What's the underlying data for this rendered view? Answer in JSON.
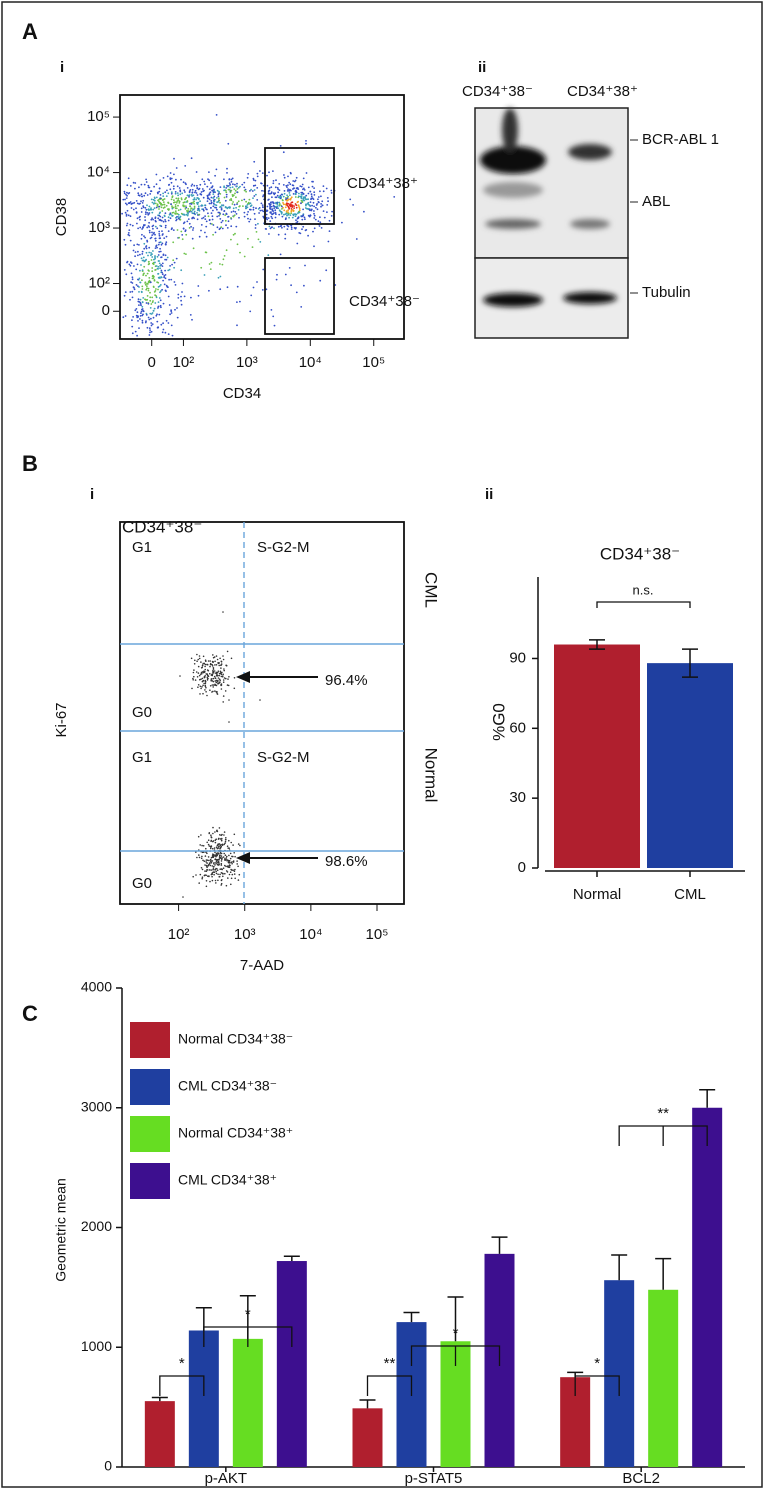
{
  "panel_labels": [
    "A",
    "i",
    "ii",
    "B",
    "i",
    "ii",
    "C"
  ],
  "blot": {
    "lanes": [
      "CD34⁺38⁻",
      "CD34⁺38⁺"
    ],
    "bands": [
      "BCR-ABL 1",
      "ABL",
      "Tubulin"
    ]
  },
  "chart_data": [
    {
      "type": "scatter",
      "xlabel": "CD34",
      "ylabel": "CD38",
      "scale": "biexponential",
      "xlim": [
        -100,
        300000
      ],
      "ylim": [
        -100,
        250000
      ],
      "xticks": [
        0,
        {
          "value": 100,
          "label": "10²"
        },
        {
          "value": 1000,
          "label": "10³"
        },
        {
          "value": 10000,
          "label": "10⁴"
        },
        {
          "value": 100000,
          "label": "10⁵"
        }
      ],
      "yticks": [
        0,
        {
          "value": 100,
          "label": "10²"
        },
        {
          "value": 1000,
          "label": "10³"
        },
        {
          "value": 10000,
          "label": "10⁴"
        },
        {
          "value": 100000,
          "label": "10⁵"
        }
      ],
      "gates": [
        "CD34⁺38⁺",
        "CD34⁺38⁻"
      ]
    },
    {
      "type": "scatter",
      "title": "CD34⁺38⁻",
      "xlabel": "7-AAD",
      "ylabel": "Ki-67",
      "log": true,
      "xlim": [
        13,
        256000
      ],
      "xticks": [
        {
          "value": 100,
          "label": "10²"
        },
        {
          "value": 1000,
          "label": "10³"
        },
        {
          "value": 10000,
          "label": "10⁴"
        },
        {
          "value": 100000,
          "label": "10⁵"
        }
      ],
      "rows": [
        {
          "name": "CML",
          "quadrants": [
            "G1",
            "S-G2-M",
            "G0"
          ],
          "annotation": "96.4%"
        },
        {
          "name": "Normal",
          "quadrants": [
            "G1",
            "S-G2-M",
            "G0"
          ],
          "annotation": "98.6%"
        }
      ]
    },
    {
      "type": "bar",
      "title": "CD34⁺38⁻",
      "ylabel": "%G0",
      "categories": [
        "Normal",
        "CML"
      ],
      "values": [
        96,
        88
      ],
      "errors": [
        2,
        6
      ],
      "colors": [
        "#b01f2e",
        "#1f3fa0"
      ],
      "ylim": [
        0,
        125
      ],
      "yticks": [
        0,
        30,
        60,
        90
      ],
      "annotation": "n.s."
    },
    {
      "type": "grouped-bar",
      "ylabel": "Geometric mean",
      "categories": [
        "p-AKT",
        "p-STAT5",
        "BCL2"
      ],
      "series": [
        {
          "name": "Normal CD34⁺38⁻",
          "color": "#b01f2e",
          "values": [
            550,
            490,
            750
          ],
          "errors": [
            30,
            70,
            40
          ]
        },
        {
          "name": "CML CD34⁺38⁻",
          "color": "#1f3fa0",
          "values": [
            1140,
            1210,
            1560
          ],
          "errors": [
            190,
            80,
            210
          ]
        },
        {
          "name": "Normal CD34⁺38⁺",
          "color": "#66dd22",
          "values": [
            1070,
            1050,
            1480
          ],
          "errors": [
            360,
            370,
            260
          ]
        },
        {
          "name": "CML CD34⁺38⁺",
          "color": "#3d0f8f",
          "values": [
            1720,
            1780,
            3000
          ],
          "errors": [
            40,
            140,
            150
          ]
        }
      ],
      "ylim": [
        0,
        4000
      ],
      "yticks": [
        0,
        1000,
        2000,
        3000,
        4000
      ],
      "legend": "upper left",
      "significance": [
        [
          "*",
          "*"
        ],
        [
          "**",
          "*"
        ],
        [
          "*",
          "**"
        ]
      ]
    }
  ]
}
